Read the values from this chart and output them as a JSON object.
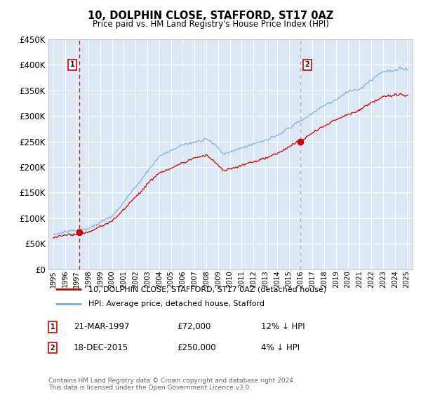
{
  "title": "10, DOLPHIN CLOSE, STAFFORD, ST17 0AZ",
  "subtitle": "Price paid vs. HM Land Registry's House Price Index (HPI)",
  "background_color": "#ffffff",
  "plot_bg_color": "#dce9f5",
  "grid_color": "#ffffff",
  "hpi_color": "#7aaed6",
  "price_color": "#cc0000",
  "sale1_date_label": "21-MAR-1997",
  "sale1_price": 72000,
  "sale1_label": "£72,000",
  "sale1_pct": "12% ↓ HPI",
  "sale1_x": 1997.22,
  "sale2_date_label": "18-DEC-2015",
  "sale2_price": 250000,
  "sale2_label": "£250,000",
  "sale2_pct": "4% ↓ HPI",
  "sale2_x": 2015.97,
  "ylim": [
    0,
    450000
  ],
  "yticks": [
    0,
    50000,
    100000,
    150000,
    200000,
    250000,
    300000,
    350000,
    400000,
    450000
  ],
  "xlim_start": 1994.6,
  "xlim_end": 2025.5,
  "legend_line1": "10, DOLPHIN CLOSE, STAFFORD, ST17 0AZ (detached house)",
  "legend_line2": "HPI: Average price, detached house, Stafford",
  "footnote": "Contains HM Land Registry data © Crown copyright and database right 2024.\nThis data is licensed under the Open Government Licence v3.0.",
  "marker1_box_label": "1",
  "marker2_box_label": "2"
}
